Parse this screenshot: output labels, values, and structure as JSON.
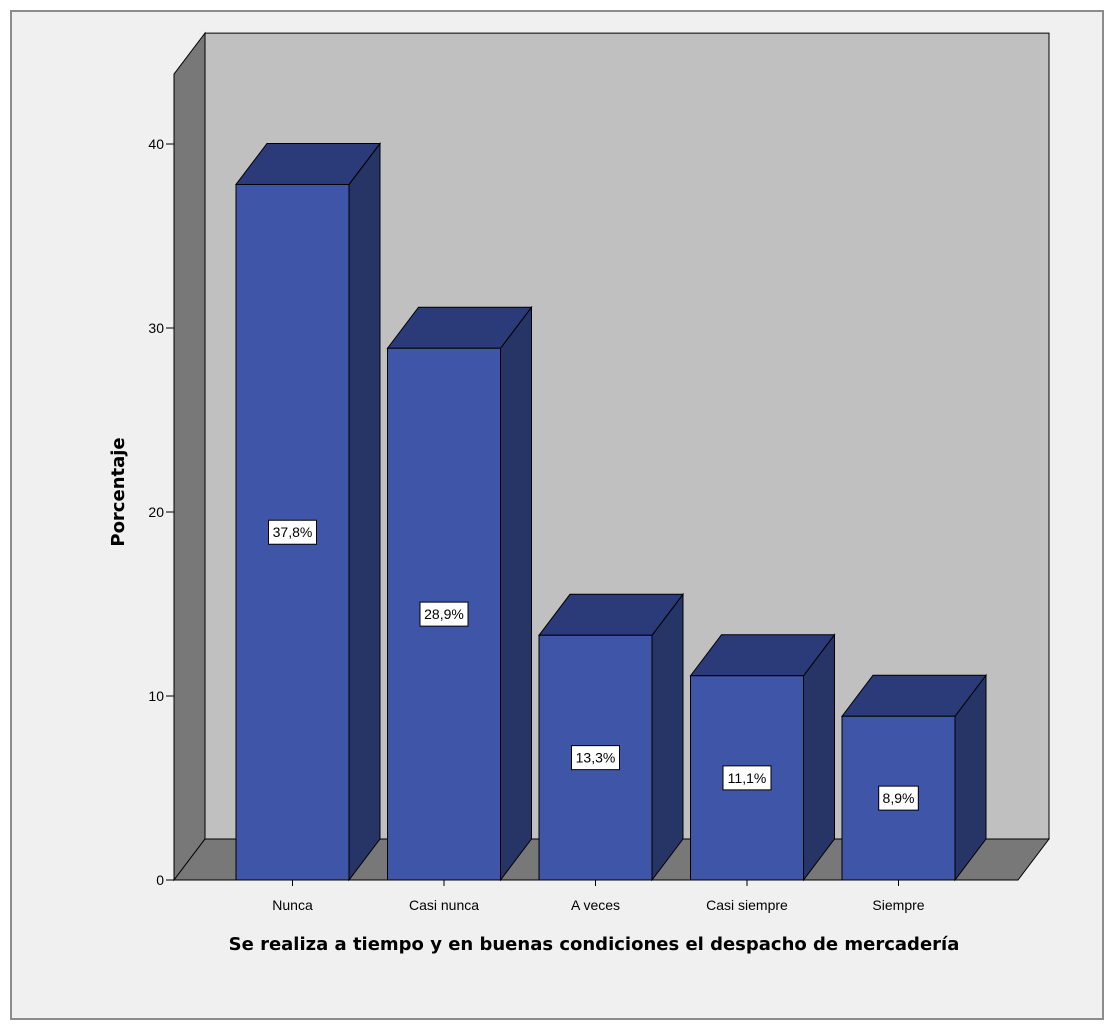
{
  "chart_data": {
    "type": "bar",
    "style": "3d",
    "categories": [
      "Nunca",
      "Casi nunca",
      "A veces",
      "Casi siempre",
      "Siempre"
    ],
    "values": [
      37.8,
      28.9,
      13.3,
      11.1,
      8.9
    ],
    "data_labels": [
      "37,8%",
      "28,9%",
      "13,3%",
      "11,1%",
      "8,9%"
    ],
    "title": "",
    "xlabel": "Se realiza a tiempo y en buenas condiciones el despacho de mercadería",
    "ylabel": "Porcentaje",
    "ylim": [
      0,
      40
    ],
    "yticks": [
      0,
      10,
      20,
      30,
      40
    ],
    "ytick_labels": [
      "0",
      "10",
      "20",
      "30",
      "40"
    ],
    "grid": false,
    "legend": "none",
    "colors": {
      "bar_front": "#3f56a8",
      "bar_top": "#2b3a78",
      "bar_side": "#263466",
      "back_wall": "#c0c0c0",
      "left_wall": "#787878",
      "floor": "#787878",
      "frame_background": "#f0f0f0"
    }
  }
}
